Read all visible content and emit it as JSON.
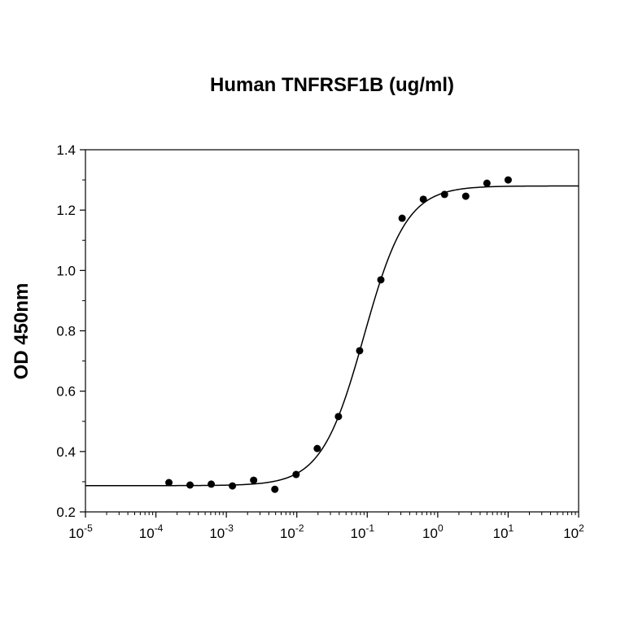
{
  "chart_data": {
    "type": "scatter",
    "title": "Human TNFRSF1B (ug/ml)",
    "xlabel": "",
    "ylabel": "OD 450nm",
    "xscale": "log",
    "xlim": [
      1e-05,
      100
    ],
    "ylim": [
      0.2,
      1.4
    ],
    "xticks": [
      {
        "base": "10",
        "exp": "-5"
      },
      {
        "base": "10",
        "exp": "-4"
      },
      {
        "base": "10",
        "exp": "-3"
      },
      {
        "base": "10",
        "exp": "-2"
      },
      {
        "base": "10",
        "exp": "-1"
      },
      {
        "base": "10",
        "exp": "0"
      },
      {
        "base": "10",
        "exp": "1"
      },
      {
        "base": "10",
        "exp": "2"
      }
    ],
    "yticks": [
      "0.2",
      "0.4",
      "0.6",
      "0.8",
      "1.0",
      "1.2",
      "1.4"
    ],
    "grid": false,
    "points": {
      "x": [
        0.000153,
        0.000305,
        0.00061,
        0.00122,
        0.00244,
        0.00488,
        0.00977,
        0.0195,
        0.039,
        0.078,
        0.156,
        0.3125,
        0.625,
        1.25,
        2.5,
        5,
        10
      ],
      "y": [
        0.297,
        0.289,
        0.292,
        0.286,
        0.305,
        0.275,
        0.324,
        0.41,
        0.516,
        0.734,
        0.969,
        1.173,
        1.236,
        1.252,
        1.246,
        1.289,
        1.3
      ]
    },
    "fit": {
      "model": "4PL",
      "bottom": 0.287,
      "top": 1.28,
      "ec50": 0.09,
      "hill": 1.44
    },
    "colors": {
      "points": "#000000",
      "line": "#000000"
    }
  }
}
